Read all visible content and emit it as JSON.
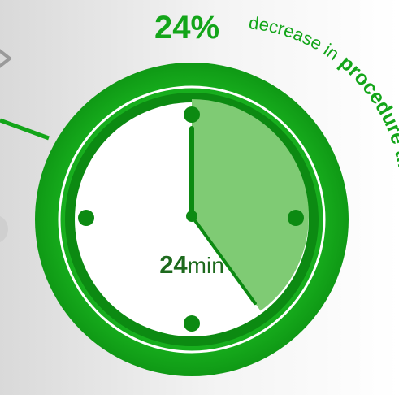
{
  "colors": {
    "ring": "#13a519",
    "ring_dark": "#0d8f13",
    "inner_ring": "#0c8a12",
    "face": "#ffffff",
    "wedge": "#7fcb74",
    "hand": "#0c8a12",
    "accent_text": "#13a519",
    "face_text": "#1d6a1d",
    "side_panel": "#e6e6e6",
    "connector": "#13a519"
  },
  "headline": {
    "percent": "24%",
    "decrease_text": "decrease in",
    "procedure_text": "procedure time"
  },
  "clock": {
    "elapsed_minutes": 24,
    "label_number": "24",
    "label_unit": "min"
  },
  "icons": {
    "left_edge": "chevron-right-icon"
  }
}
